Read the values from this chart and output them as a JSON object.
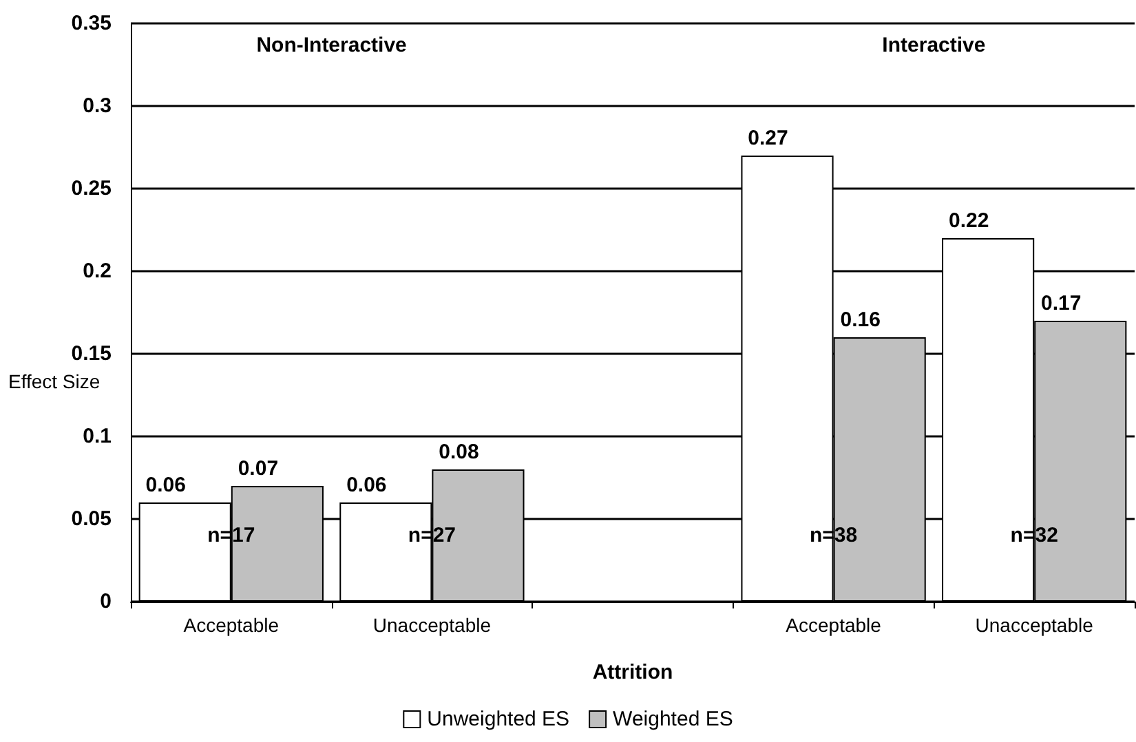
{
  "chart_data": {
    "type": "bar",
    "xlabel": "Attrition",
    "ylabel": "Effect Size",
    "categories": [
      "Acceptable",
      "Unacceptable",
      null,
      "Acceptable",
      "Unacceptable"
    ],
    "series": [
      {
        "name": "Unweighted ES",
        "color": "#ffffff",
        "values": [
          0.06,
          0.06,
          null,
          0.27,
          0.22
        ]
      },
      {
        "name": "Weighted ES",
        "color": "#c0c0c0",
        "values": [
          0.07,
          0.08,
          null,
          0.16,
          0.17
        ]
      }
    ],
    "ylim": [
      0,
      0.35
    ],
    "yticks": [
      0,
      0.05,
      0.1,
      0.15,
      0.2,
      0.25,
      0.3,
      0.35
    ],
    "grid": "y",
    "legend": "bottom",
    "data_labels": true,
    "annotations": [
      "Non-Interactive",
      "Interactive",
      "n=17",
      "n=27",
      "n=38",
      "n=32"
    ]
  }
}
